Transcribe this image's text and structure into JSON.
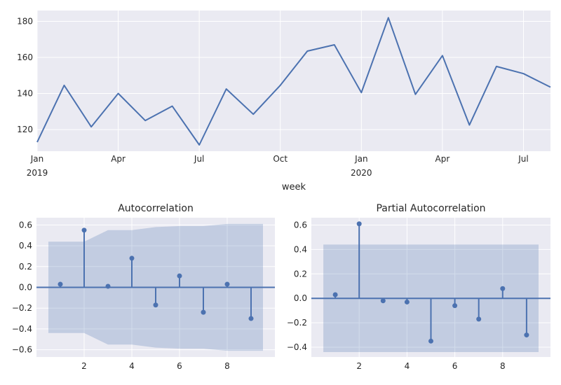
{
  "chart_data": [
    {
      "type": "line",
      "title": "",
      "xlabel": "week",
      "ylabel": "",
      "x": [
        "2019-01",
        "2019-02",
        "2019-03",
        "2019-04",
        "2019-05",
        "2019-06",
        "2019-07",
        "2019-08",
        "2019-09",
        "2019-10",
        "2019-11",
        "2019-12",
        "2020-01",
        "2020-02",
        "2020-03",
        "2020-04",
        "2020-05",
        "2020-06",
        "2020-07",
        "2020-08"
      ],
      "series": [
        {
          "values": [
            113,
            144.5,
            121.5,
            140,
            125,
            133,
            111.5,
            142.5,
            128.5,
            144.5,
            163.5,
            167,
            140.5,
            182,
            139.5,
            161,
            122.5,
            155,
            151,
            143.5
          ],
          "color": "#4c72b0"
        }
      ],
      "ylim": [
        108,
        186
      ],
      "yticks": [
        120,
        140,
        160,
        180
      ],
      "xticks": [
        {
          "month": "2019-01",
          "label": "Jan",
          "year": "2019"
        },
        {
          "month": "2019-04",
          "label": "Apr",
          "year": ""
        },
        {
          "month": "2019-07",
          "label": "Jul",
          "year": ""
        },
        {
          "month": "2019-10",
          "label": "Oct",
          "year": ""
        },
        {
          "month": "2020-01",
          "label": "Jan",
          "year": "2020"
        },
        {
          "month": "2020-04",
          "label": "Apr",
          "year": ""
        },
        {
          "month": "2020-07",
          "label": "Jul",
          "year": ""
        }
      ],
      "grid": true
    },
    {
      "type": "stem",
      "title": "Autocorrelation",
      "xlabel": "",
      "ylabel": "",
      "lags": [
        1,
        2,
        3,
        4,
        5,
        6,
        7,
        8,
        9
      ],
      "values": [
        0.03,
        0.55,
        0.01,
        0.28,
        -0.17,
        0.11,
        -0.24,
        0.03,
        -0.3
      ],
      "confidence_band": {
        "x": [
          0.5,
          2,
          3,
          4,
          5,
          6,
          7,
          8,
          9,
          9.5
        ],
        "upper": [
          0.44,
          0.44,
          0.55,
          0.55,
          0.58,
          0.59,
          0.59,
          0.61,
          0.61,
          0.61
        ]
      },
      "xlim": [
        0,
        10
      ],
      "ylim": [
        -0.67,
        0.67
      ],
      "xticks": [
        2,
        4,
        6,
        8
      ],
      "yticks": [
        -0.6,
        -0.4,
        -0.2,
        0.0,
        0.2,
        0.4,
        0.6
      ],
      "color": "#4c72b0",
      "grid": true
    },
    {
      "type": "stem",
      "title": "Partial Autocorrelation",
      "xlabel": "",
      "ylabel": "",
      "lags": [
        1,
        2,
        3,
        4,
        5,
        6,
        7,
        8,
        9
      ],
      "values": [
        0.03,
        0.61,
        -0.02,
        -0.03,
        -0.35,
        -0.06,
        -0.17,
        0.08,
        -0.3
      ],
      "confidence_band": {
        "x": [
          0.5,
          9.5
        ],
        "upper": [
          0.44,
          0.44
        ]
      },
      "xlim": [
        0,
        10
      ],
      "ylim": [
        -0.48,
        0.66
      ],
      "xticks": [
        2,
        4,
        6,
        8
      ],
      "yticks": [
        -0.4,
        -0.2,
        0.0,
        0.2,
        0.4,
        0.6
      ],
      "color": "#4c72b0",
      "grid": true
    }
  ]
}
